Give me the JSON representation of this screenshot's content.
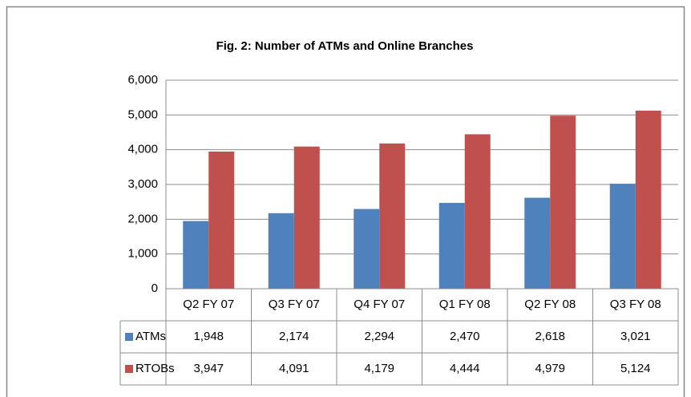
{
  "chart_data": {
    "type": "bar",
    "title": "Fig. 2: Number of ATMs and Online Branches",
    "categories": [
      "Q2 FY 07",
      "Q3 FY 07",
      "Q4 FY 07",
      "Q1 FY 08",
      "Q2 FY 08",
      "Q3 FY 08"
    ],
    "series": [
      {
        "name": "ATMs",
        "color": "#4f81bd",
        "values": [
          1948,
          2174,
          2294,
          2470,
          2618,
          3021
        ],
        "value_labels": [
          "1,948",
          "2,174",
          "2,294",
          "2,470",
          "2,618",
          "3,021"
        ]
      },
      {
        "name": "RTOBs",
        "color": "#c0504d",
        "values": [
          3947,
          4091,
          4179,
          4444,
          4979,
          5124
        ],
        "value_labels": [
          "3,947",
          "4,091",
          "4,179",
          "4,444",
          "4,979",
          "5,124"
        ]
      }
    ],
    "ylim": [
      0,
      6000
    ],
    "yticks": [
      0,
      {
        "value": 1000,
        "label": "1,000"
      },
      {
        "value": 2000,
        "label": "2,000"
      },
      {
        "value": 3000,
        "label": "3,000"
      },
      {
        "value": 4000,
        "label": "4,000"
      },
      {
        "value": 5000,
        "label": "5,000"
      },
      {
        "value": 6000,
        "label": "6,000"
      }
    ],
    "grid": true
  }
}
